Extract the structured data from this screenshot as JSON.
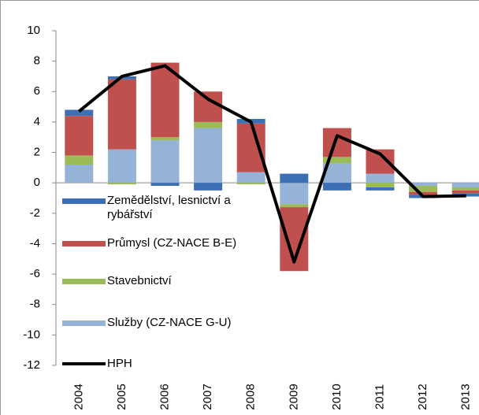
{
  "chart_data": {
    "type": "bar",
    "categories": [
      "2004",
      "2005",
      "2006",
      "2007",
      "2008",
      "2009",
      "2010",
      "2011",
      "2012",
      "2013"
    ],
    "series": [
      {
        "name": "Zemědělství, lesnictví a rybářství",
        "color": "#3d6fb4",
        "values": [
          0.4,
          0.2,
          -0.2,
          -0.5,
          0.3,
          0.6,
          -0.5,
          -0.2,
          -0.2,
          -0.2
        ]
      },
      {
        "name": "Průmysl (CZ-NACE B-E)",
        "color": "#c0504d",
        "values": [
          2.6,
          4.6,
          4.9,
          2.0,
          3.2,
          -4.2,
          1.9,
          1.6,
          -0.2,
          -0.2
        ]
      },
      {
        "name": "Stavebnictví",
        "color": "#9bbb59",
        "values": [
          0.6,
          -0.1,
          0.2,
          0.4,
          -0.1,
          -0.2,
          0.4,
          -0.3,
          -0.4,
          -0.2
        ]
      },
      {
        "name": "Služby (CZ-NACE G-U)",
        "color": "#95b3d7",
        "values": [
          1.2,
          2.2,
          2.8,
          3.6,
          0.7,
          -1.4,
          1.3,
          0.6,
          -0.2,
          -0.3
        ]
      },
      {
        "name": "HPH",
        "color": "#000000",
        "type": "line",
        "values": [
          4.7,
          7.0,
          7.7,
          5.5,
          4.0,
          -5.2,
          3.1,
          1.9,
          -0.9,
          -0.85
        ]
      }
    ],
    "ylim": [
      -12,
      10
    ],
    "yticks": [
      -12,
      -10,
      -8,
      -6,
      -4,
      -2,
      0,
      2,
      4,
      6,
      8,
      10
    ]
  }
}
